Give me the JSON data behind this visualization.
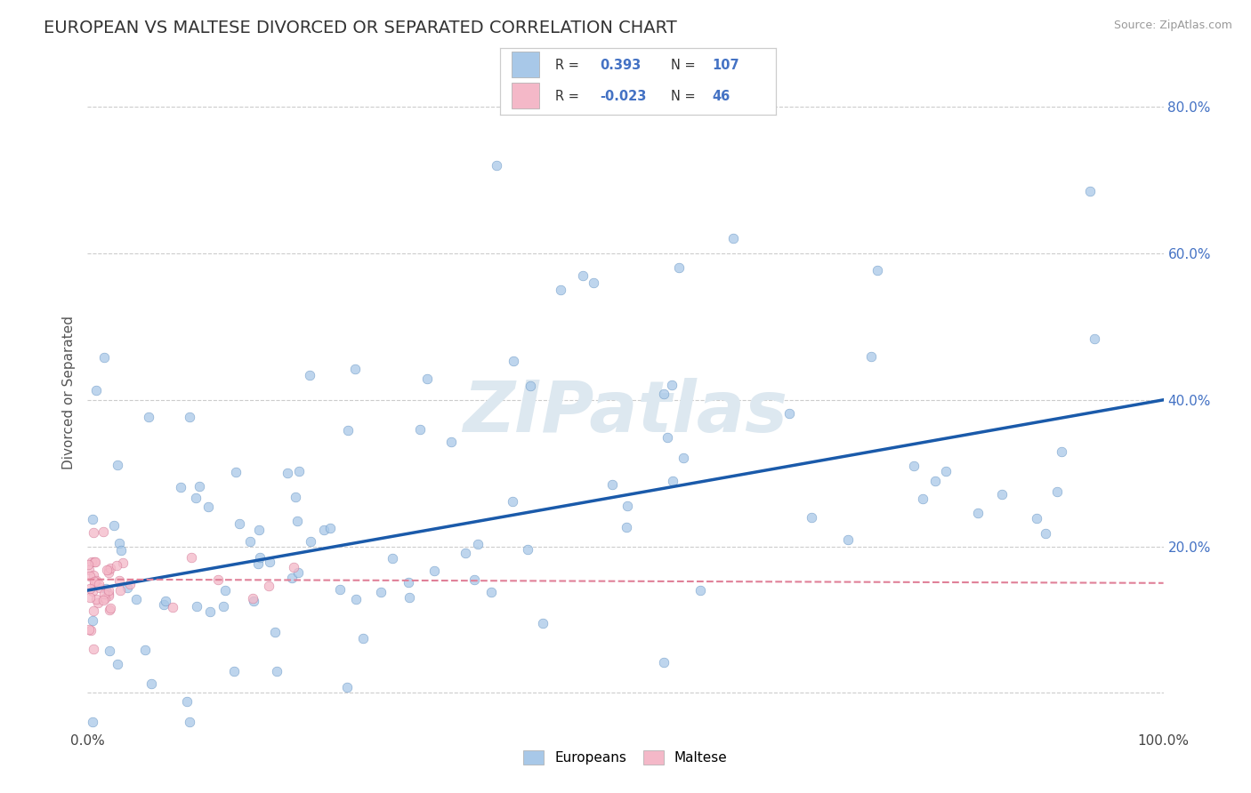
{
  "title": "EUROPEAN VS MALTESE DIVORCED OR SEPARATED CORRELATION CHART",
  "source": "Source: ZipAtlas.com",
  "ylabel": "Divorced or Separated",
  "xlim": [
    0.0,
    1.0
  ],
  "ylim": [
    -0.05,
    0.87
  ],
  "ytick_vals": [
    0.0,
    0.2,
    0.4,
    0.6,
    0.8
  ],
  "xtick_vals": [
    0.0,
    0.5,
    1.0
  ],
  "xtick_labels": [
    "0.0%",
    "",
    "100.0%"
  ],
  "right_ytick_labels": [
    "",
    "20.0%",
    "40.0%",
    "60.0%",
    "80.0%"
  ],
  "european_R": 0.393,
  "european_N": 107,
  "maltese_R": -0.023,
  "maltese_N": 46,
  "european_color": "#a8c8e8",
  "maltese_color": "#f4b8c8",
  "european_edge_color": "#6090c0",
  "maltese_edge_color": "#d07090",
  "european_line_color": "#1a5aaa",
  "maltese_line_color": "#e08098",
  "background_color": "#ffffff",
  "grid_color": "#cccccc",
  "watermark": "ZIPatlas",
  "watermark_color": "#dde8f0",
  "title_fontsize": 14,
  "label_fontsize": 11,
  "tick_fontsize": 11,
  "right_tick_color": "#4472c4",
  "legend_text_color": "#333333",
  "legend_value_color": "#4472c4",
  "eu_line_start_x": 0.0,
  "eu_line_start_y": 0.14,
  "eu_line_end_x": 1.0,
  "eu_line_end_y": 0.4,
  "mt_line_start_x": 0.0,
  "mt_line_start_y": 0.155,
  "mt_line_end_x": 1.0,
  "mt_line_end_y": 0.15
}
